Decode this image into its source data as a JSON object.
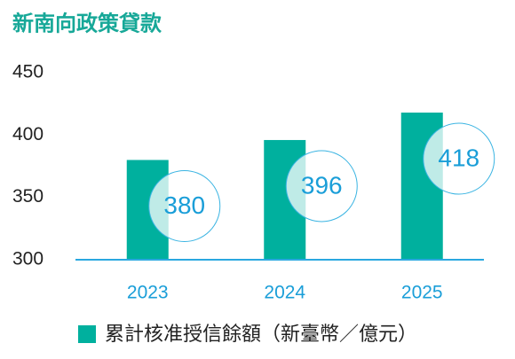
{
  "chart_data": {
    "type": "bar",
    "title": "新南向政策貸款",
    "categories": [
      "2023",
      "2024",
      "2025"
    ],
    "series": [
      {
        "name": "累計核准授信餘額（新臺幣／億元）",
        "color": "#00b09e",
        "values": [
          380,
          396,
          418
        ]
      }
    ],
    "ylim": [
      300,
      450
    ],
    "yticks": [
      300,
      350,
      400,
      450
    ],
    "grid": false,
    "legend": "bottom"
  }
}
